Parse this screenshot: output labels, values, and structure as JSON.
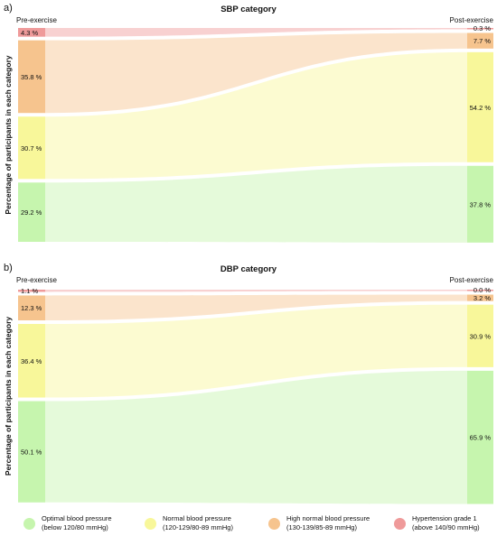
{
  "colors": {
    "optimal": "#c6f5ae",
    "normal": "#f8f79a",
    "high_normal": "#f6c48e",
    "hypertension": "#ef9a9a"
  },
  "chart_data": [
    {
      "panel_label": "a)",
      "type": "sankey",
      "title": "SBP category",
      "left_label": "Pre-exercise",
      "right_label": "Post-exercise",
      "ylabel": "Percentage of participants in each category",
      "categories": [
        "Hypertension grade 1",
        "High normal blood pressure",
        "Normal blood pressure",
        "Optimal blood pressure"
      ],
      "pre": [
        4.3,
        35.8,
        30.7,
        29.2
      ],
      "post": [
        0.3,
        7.7,
        54.2,
        37.8
      ],
      "pre_labels": [
        "4.3 %",
        "35.8 %",
        "30.7 %",
        "29.2 %"
      ],
      "post_labels": [
        "0.3 %",
        "7.7 %",
        "54.2 %",
        "37.8 %"
      ]
    },
    {
      "panel_label": "b)",
      "type": "sankey",
      "title": "DBP category",
      "left_label": "Pre-exercise",
      "right_label": "Post-exercise",
      "ylabel": "Percentage of participants in each category",
      "categories": [
        "Hypertension grade 1",
        "High normal blood pressure",
        "Normal blood pressure",
        "Optimal blood pressure"
      ],
      "pre": [
        1.1,
        12.3,
        36.4,
        50.1
      ],
      "post": [
        0.0,
        3.2,
        30.9,
        65.9
      ],
      "pre_labels": [
        "1.1 %",
        "12.3 %",
        "36.4 %",
        "50.1 %"
      ],
      "post_labels": [
        "0.0 %",
        "3.2 %",
        "30.9 %",
        "65.9 %"
      ]
    }
  ],
  "legend": [
    {
      "key": "optimal",
      "line1": "Optimal blood pressure",
      "line2": "(below 120/80 mmHg)"
    },
    {
      "key": "normal",
      "line1": "Normal blood pressure",
      "line2": "(120-129/80-89 mmHg)"
    },
    {
      "key": "high_normal",
      "line1": "High normal blood pressure",
      "line2": "(130-139/85-89 mmHg)"
    },
    {
      "key": "hypertension",
      "line1": "Hypertension grade 1",
      "line2": "(above 140/90 mmHg)"
    }
  ]
}
